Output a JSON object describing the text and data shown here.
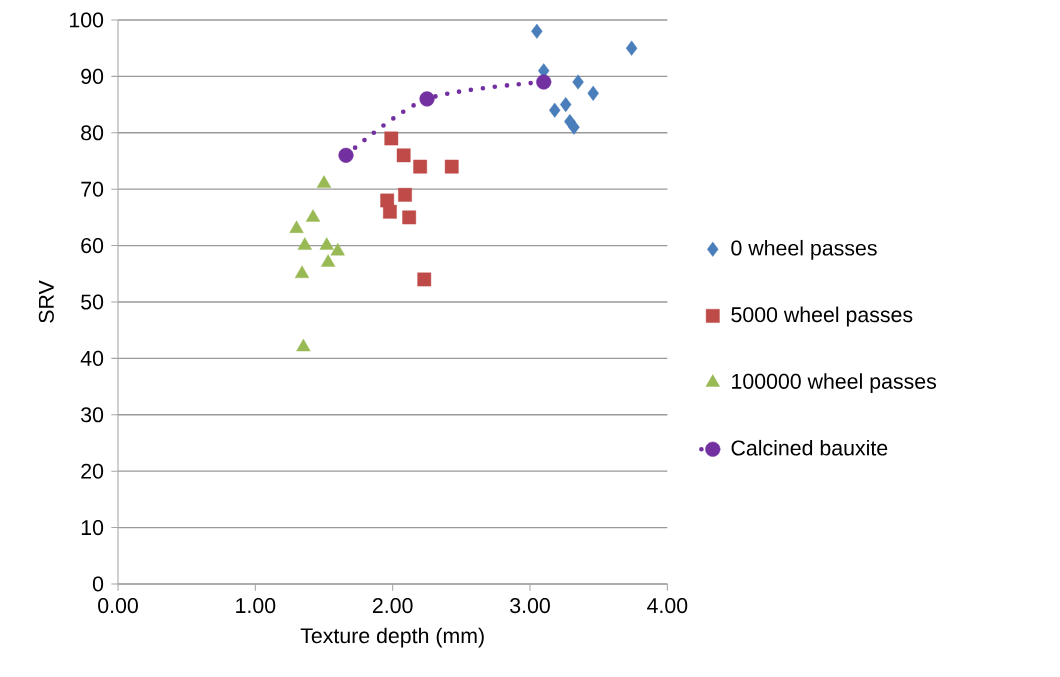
{
  "chart_data": {
    "type": "scatter",
    "xlabel": "Texture depth (mm)",
    "ylabel": "SRV",
    "xlim": [
      0,
      4
    ],
    "ylim": [
      0,
      100
    ],
    "xticks": [
      {
        "value": 0,
        "label": "0.00"
      },
      {
        "value": 1,
        "label": "1.00"
      },
      {
        "value": 2,
        "label": "2.00"
      },
      {
        "value": 3,
        "label": "3.00"
      },
      {
        "value": 4,
        "label": "4.00"
      }
    ],
    "yticks": [
      0,
      10,
      20,
      30,
      40,
      50,
      60,
      70,
      80,
      90,
      100
    ],
    "grid": "y",
    "legend": "right",
    "series": [
      {
        "name": "0 wheel passes",
        "color": "#4a7ebb",
        "marker": "diamond",
        "x": [
          3.05,
          3.1,
          3.74,
          3.35,
          3.26,
          3.18,
          3.46,
          3.29,
          3.32
        ],
        "values": [
          98,
          91,
          95,
          89,
          85,
          84,
          87,
          82,
          81
        ]
      },
      {
        "name": "5000 wheel passes",
        "color": "#be4b48",
        "marker": "square",
        "x": [
          1.99,
          2.08,
          2.2,
          2.43,
          2.09,
          1.96,
          1.98,
          2.12,
          2.23
        ],
        "values": [
          79,
          76,
          74,
          74,
          69,
          68,
          66,
          65,
          54
        ]
      },
      {
        "name": "100000 wheel passes",
        "color": "#98b954",
        "marker": "triangle",
        "x": [
          1.5,
          1.42,
          1.3,
          1.36,
          1.52,
          1.6,
          1.53,
          1.34,
          1.35
        ],
        "values": [
          71,
          65,
          63,
          60,
          60,
          59,
          57,
          55,
          42
        ]
      },
      {
        "name": "Calcined bauxite",
        "type": "line",
        "color": "#7330a0",
        "marker": "circle",
        "line_style": "dotted",
        "x": [
          1.66,
          2.25,
          3.1
        ],
        "values": [
          76,
          86,
          89
        ]
      }
    ]
  }
}
